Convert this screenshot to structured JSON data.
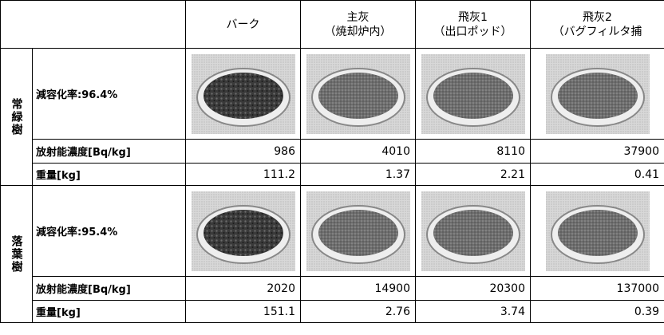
{
  "header": {
    "columns": [
      {
        "title": "バーク"
      },
      {
        "title": "主灰",
        "subtitle": "（焼却炉内）"
      },
      {
        "title": "飛灰1",
        "subtitle": "（出口ポッド）"
      },
      {
        "title": "飛灰2",
        "subtitle": "（バグフィルタ捕"
      }
    ]
  },
  "groups": [
    {
      "label": "常緑樹",
      "reduction": "減容化率:96.4%",
      "concentration_label": "放射能濃度[Bq/kg]",
      "concentration": [
        986,
        4010,
        8110,
        37900
      ],
      "weight_label": "重量[kg]",
      "weight": [
        111.2,
        1.37,
        2.21,
        0.41
      ]
    },
    {
      "label": "落葉樹",
      "reduction": "減容化率:95.4%",
      "concentration_label": "放射能濃度[Bq/kg]",
      "concentration": [
        2020,
        14900,
        20300,
        137000
      ],
      "weight_label": "重量[kg]",
      "weight": [
        151.1,
        2.76,
        3.74,
        0.39
      ]
    }
  ]
}
